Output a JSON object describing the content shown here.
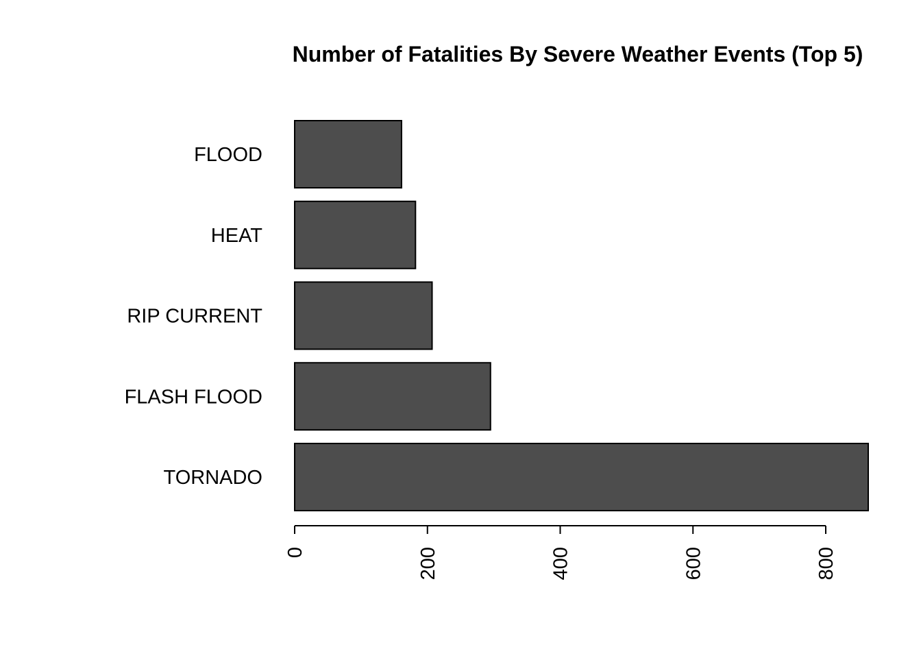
{
  "chart_data": {
    "type": "bar",
    "orientation": "horizontal",
    "title": "Number of Fatalities By Severe Weather Events (Top 5)",
    "categories": [
      "TORNADO",
      "FLASH FLOOD",
      "RIP CURRENT",
      "HEAT",
      "FLOOD"
    ],
    "values": [
      864,
      295,
      207,
      182,
      161
    ],
    "xlabel": "",
    "ylabel": "",
    "xlim": [
      0,
      864
    ],
    "x_ticks": [
      0,
      200,
      400,
      600,
      800
    ],
    "grid": false,
    "legend": "none",
    "bar_color": "#4d4d4d",
    "border_color": "#000000",
    "text_color": "#000000"
  }
}
